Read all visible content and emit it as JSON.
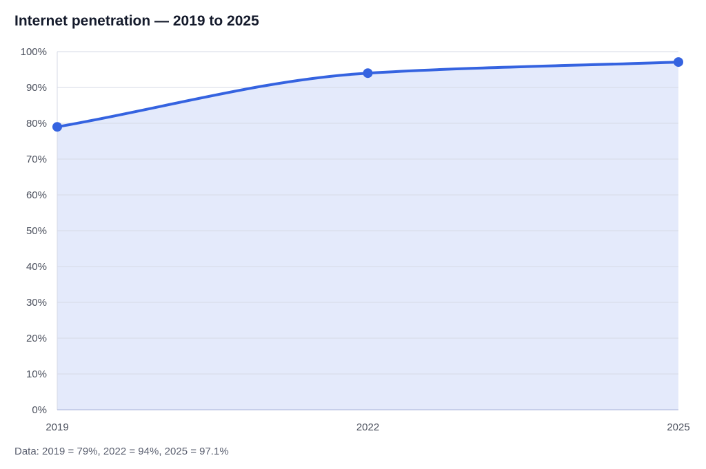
{
  "chart_data": {
    "type": "area",
    "title": "Internet penetration — 2019 to 2025",
    "xlabel": "",
    "ylabel": "",
    "x": [
      "2019",
      "2022",
      "2025"
    ],
    "series": [
      {
        "values": [
          79,
          94,
          97.1
        ]
      }
    ],
    "ylim": [
      0,
      100
    ],
    "y_ticks": [
      0,
      10,
      20,
      30,
      40,
      50,
      60,
      70,
      80,
      90,
      100
    ],
    "y_tick_format": "%",
    "grid": true,
    "legend": "none",
    "colors": {
      "line": "#3563e0",
      "fill": "#e4eafb",
      "grid": "#d6dae6",
      "axis": "#a9b3d8"
    }
  },
  "footnote": "Data: 2019 = 79%, 2022 = 94%, 2025 = 97.1%"
}
